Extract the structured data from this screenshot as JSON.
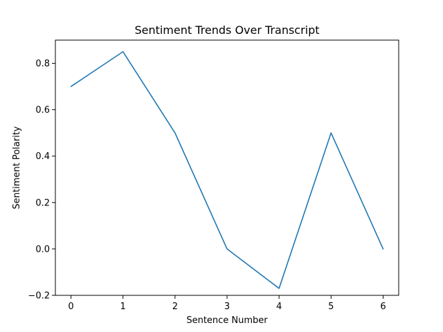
{
  "chart_data": {
    "type": "line",
    "title": "Sentiment Trends Over Transcript",
    "xlabel": "Sentence Number",
    "ylabel": "Sentiment Polarity",
    "x": [
      0,
      1,
      2,
      3,
      4,
      5,
      6
    ],
    "series": [
      {
        "values": [
          0.7,
          0.85,
          0.5,
          0.0,
          -0.17,
          0.5,
          0.0
        ],
        "color": "#1f77b4"
      }
    ],
    "xlim": [
      -0.3,
      6.3
    ],
    "ylim": [
      -0.2,
      0.9
    ],
    "xticks": [
      0,
      1,
      2,
      3,
      4,
      5,
      6
    ],
    "yticks": [
      -0.2,
      0.0,
      0.2,
      0.4,
      0.6,
      0.8
    ],
    "xtick_labels": [
      "0",
      "1",
      "2",
      "3",
      "4",
      "5",
      "6"
    ],
    "ytick_labels": [
      "−0.2",
      "0.0",
      "0.2",
      "0.4",
      "0.6",
      "0.8"
    ],
    "grid": false,
    "legend": "none"
  }
}
